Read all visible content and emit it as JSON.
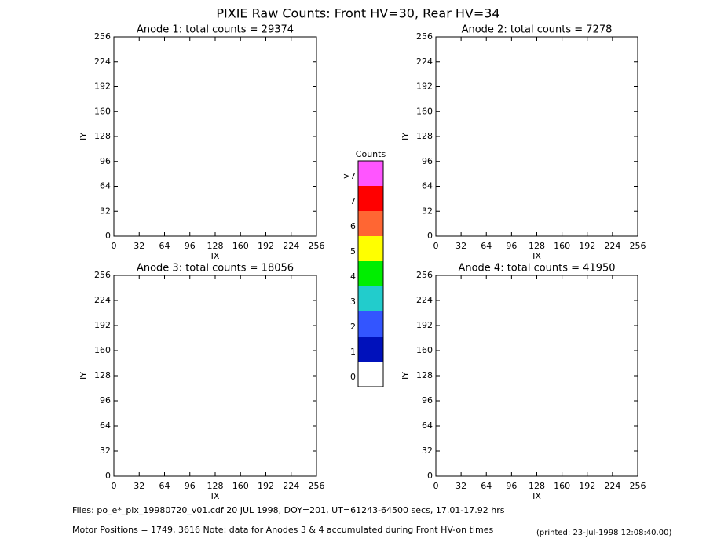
{
  "title": "PIXIE Raw Counts:  Front HV=30, Rear HV=34",
  "chart_data": [
    {
      "type": "heatmap",
      "title": "Anode 1: total counts = 29374",
      "x_label": "IX",
      "y_label": "IY",
      "xlim": [
        0,
        256
      ],
      "ylim": [
        0,
        256
      ],
      "xticks": [
        0,
        32,
        64,
        96,
        128,
        160,
        192,
        224,
        256
      ],
      "yticks": [
        0,
        32,
        64,
        96,
        128,
        160,
        192,
        224,
        256
      ]
    },
    {
      "type": "heatmap",
      "title": "Anode 2: total counts = 7278",
      "x_label": "IX",
      "y_label": "IY",
      "xlim": [
        0,
        256
      ],
      "ylim": [
        0,
        256
      ],
      "xticks": [
        0,
        32,
        64,
        96,
        128,
        160,
        192,
        224,
        256
      ],
      "yticks": [
        0,
        32,
        64,
        96,
        128,
        160,
        192,
        224,
        256
      ]
    },
    {
      "type": "heatmap",
      "title": "Anode 3: total counts = 18056",
      "x_label": "IX",
      "y_label": "IY",
      "xlim": [
        0,
        256
      ],
      "ylim": [
        0,
        256
      ],
      "xticks": [
        0,
        32,
        64,
        96,
        128,
        160,
        192,
        224,
        256
      ],
      "yticks": [
        0,
        32,
        64,
        96,
        128,
        160,
        192,
        224,
        256
      ]
    },
    {
      "type": "heatmap",
      "title": "Anode 4: total counts = 41950",
      "x_label": "IX",
      "y_label": "IY",
      "xlim": [
        0,
        256
      ],
      "ylim": [
        0,
        256
      ],
      "xticks": [
        0,
        32,
        64,
        96,
        128,
        160,
        192,
        224,
        256
      ],
      "yticks": [
        0,
        32,
        64,
        96,
        128,
        160,
        192,
        224,
        256
      ]
    }
  ],
  "colorbar": {
    "title": "Counts",
    "levels": [
      "0",
      "1",
      "2",
      "3",
      "4",
      "5",
      "6",
      "7",
      ">7"
    ],
    "colors": [
      "#ffffff",
      "#0011bb",
      "#3355ff",
      "#22cccc",
      "#00ee00",
      "#ffff00",
      "#ff6633",
      "#ff0000",
      "#ff55ff"
    ]
  },
  "footer": {
    "files": "Files: po_e*_pix_19980720_v01.cdf    20 JUL 1998, DOY=201, UT=61243-64500 secs, 17.01-17.92 hrs",
    "motor": "Motor Positions = 1749, 3616   Note: data for Anodes 3 & 4 accumulated during Front HV-on times",
    "printed": "(printed: 23-Jul-1998 12:08:40.00)"
  }
}
